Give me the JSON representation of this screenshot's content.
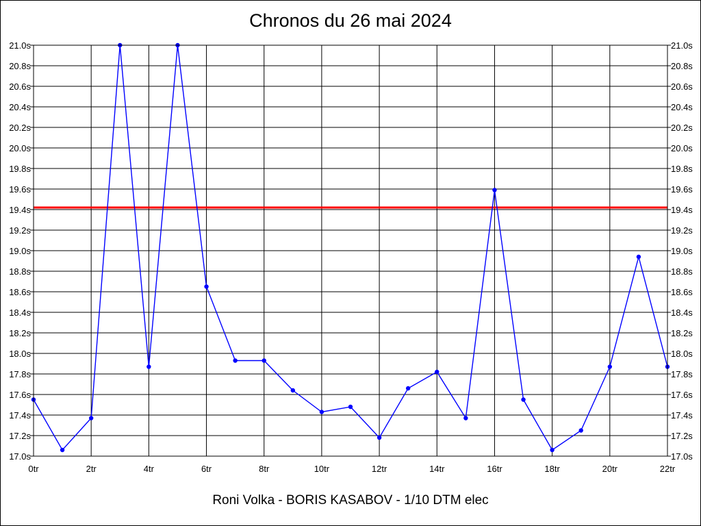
{
  "chart_data": {
    "type": "line",
    "title": "Chronos du 26 mai 2024",
    "subtitle": "Roni Volka - BORIS KASABOV - 1/10 DTM elec",
    "xlabel": "",
    "ylabel": "",
    "x": [
      0,
      1,
      2,
      3,
      4,
      5,
      6,
      7,
      8,
      9,
      10,
      11,
      12,
      13,
      14,
      15,
      16,
      17,
      18,
      19,
      20,
      21,
      22
    ],
    "x_tick_values": [
      0,
      2,
      4,
      6,
      8,
      10,
      12,
      14,
      16,
      18,
      20,
      22
    ],
    "x_tick_labels": [
      "0tr",
      "2tr",
      "4tr",
      "6tr",
      "8tr",
      "10tr",
      "12tr",
      "14tr",
      "16tr",
      "18tr",
      "20tr",
      "22tr"
    ],
    "y_tick_values": [
      17.0,
      17.2,
      17.4,
      17.6,
      17.8,
      18.0,
      18.2,
      18.4,
      18.6,
      18.8,
      19.0,
      19.2,
      19.4,
      19.6,
      19.8,
      20.0,
      20.2,
      20.4,
      20.6,
      20.8,
      21.0
    ],
    "y_tick_labels": [
      "17.0s",
      "17.2s",
      "17.4s",
      "17.6s",
      "17.8s",
      "18.0s",
      "18.2s",
      "18.4s",
      "18.6s",
      "18.8s",
      "19.0s",
      "19.2s",
      "19.4s",
      "19.6s",
      "19.8s",
      "20.0s",
      "20.2s",
      "20.4s",
      "20.6s",
      "20.8s",
      "21.0s"
    ],
    "xlim": [
      0,
      22
    ],
    "ylim": [
      17.0,
      21.0
    ],
    "grid": true,
    "series": [
      {
        "values": [
          17.55,
          17.06,
          17.37,
          21.0,
          17.87,
          21.0,
          18.65,
          17.93,
          17.93,
          17.64,
          17.43,
          17.48,
          17.18,
          17.66,
          17.82,
          17.37,
          19.59,
          17.55,
          17.06,
          17.25,
          17.87,
          18.94,
          17.87
        ],
        "color": "#0000ff"
      }
    ],
    "reference_line": {
      "value": 19.42,
      "color": "#ff0000"
    }
  }
}
